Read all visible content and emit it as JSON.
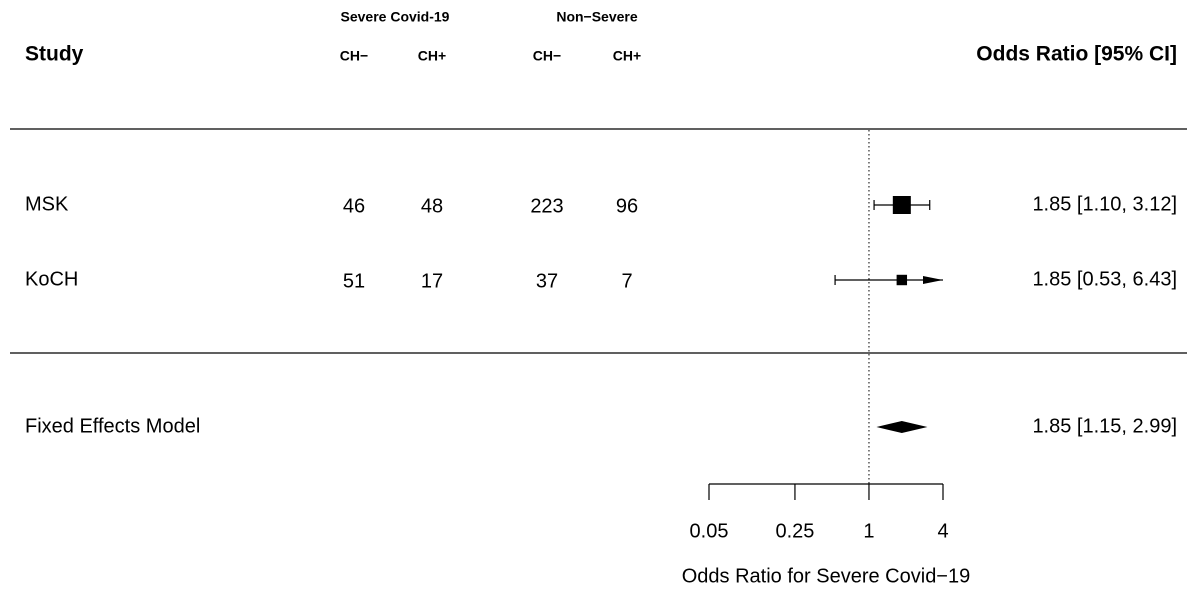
{
  "chart_data": {
    "type": "forest",
    "study_header": "Study",
    "estimate_header": "Odds Ratio [95% CI]",
    "column_groups": [
      {
        "label": "Severe Covid-19",
        "columns": [
          "CH−",
          "CH+"
        ]
      },
      {
        "label": "Non−Severe",
        "columns": [
          "CH−",
          "CH+"
        ]
      }
    ],
    "studies": [
      {
        "name": "MSK",
        "counts": [
          46,
          48,
          223,
          96
        ],
        "value": 1.85,
        "lower": 1.1,
        "upper": 3.12,
        "value_label": "1.85 [1.10, 3.12]"
      },
      {
        "name": "KoCH",
        "counts": [
          51,
          17,
          37,
          7
        ],
        "value": 1.85,
        "lower": 0.53,
        "upper": 6.43,
        "value_label": "1.85 [0.53, 6.43]"
      }
    ],
    "model": {
      "name": "Fixed Effects Model",
      "value": 1.85,
      "lower": 1.15,
      "upper": 2.99,
      "value_label": "1.85 [1.15, 2.99]"
    },
    "xscale": "log",
    "xlim": [
      0.05,
      4
    ],
    "xticks": [
      0.05,
      0.25,
      1,
      4
    ],
    "reference_line": 1,
    "xlabel": "Odds Ratio for Severe Covid−19"
  }
}
